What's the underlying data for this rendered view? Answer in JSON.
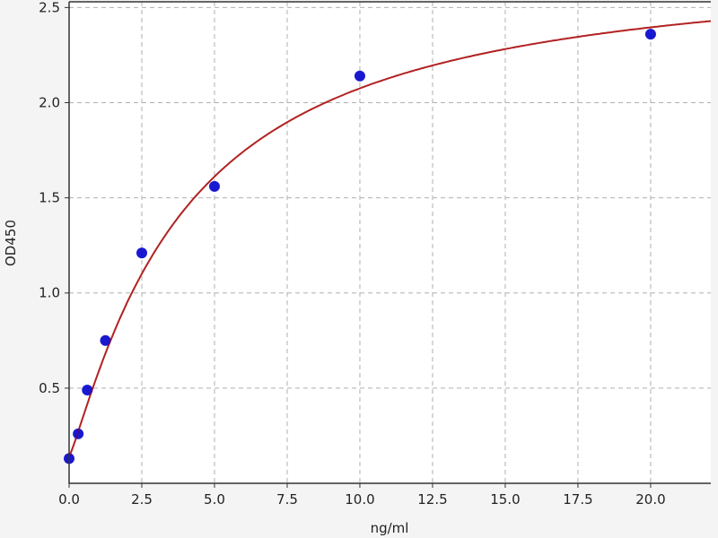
{
  "chart_data": {
    "type": "scatter",
    "title": "",
    "xlabel": "ng/ml",
    "ylabel": "OD450",
    "xlim": [
      0,
      22.07
    ],
    "ylim": [
      0,
      2.53
    ],
    "xticks": [
      "0.0",
      "2.5",
      "5.0",
      "7.5",
      "10.0",
      "12.5",
      "15.0",
      "17.5",
      "20.0"
    ],
    "xtick_values": [
      0,
      2.5,
      5,
      7.5,
      10,
      12.5,
      15,
      17.5,
      20
    ],
    "yticks": [
      "0.5",
      "1.0",
      "1.5",
      "2.0",
      "2.5"
    ],
    "ytick_values": [
      0.5,
      1.0,
      1.5,
      2.0,
      2.5
    ],
    "grid": true,
    "points": {
      "x": [
        0,
        0.3125,
        0.625,
        1.25,
        2.5,
        5,
        10,
        20
      ],
      "y": [
        0.13,
        0.26,
        0.49,
        0.75,
        1.21,
        1.56,
        2.14,
        2.36
      ],
      "color": "#0000cc"
    },
    "fit_curve": {
      "model": "4PL",
      "a": 0.14,
      "b": 1.15,
      "c": 4.0,
      "d": 2.75,
      "color": "#b22222"
    }
  }
}
